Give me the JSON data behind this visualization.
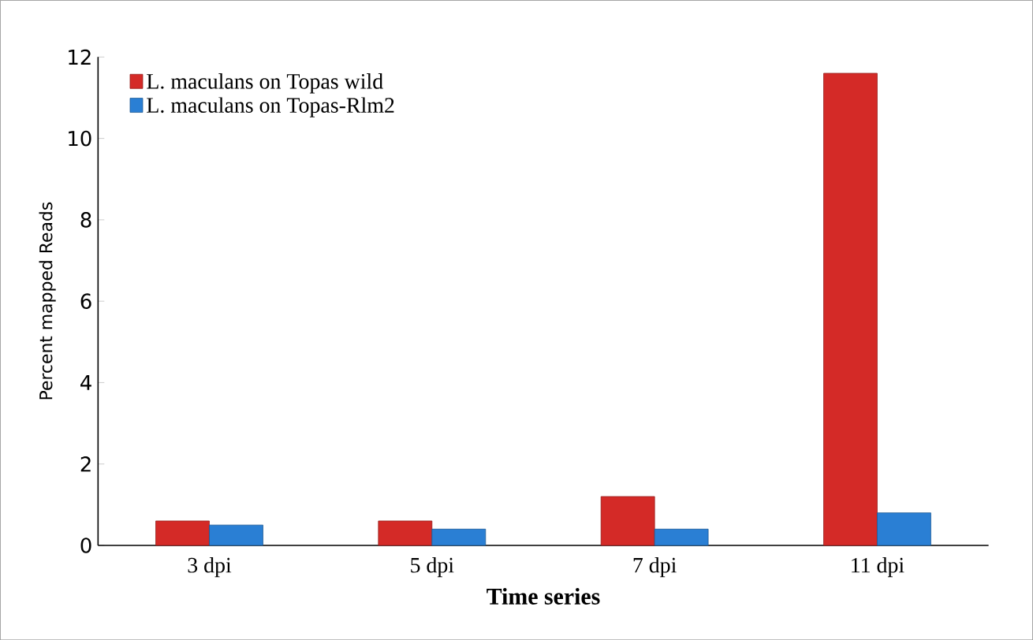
{
  "chart_data": {
    "type": "bar",
    "xlabel": "Time series",
    "ylabel": "Percent mapped Reads",
    "categories": [
      "3 dpi",
      "5 dpi",
      "7 dpi",
      "11 dpi"
    ],
    "series": [
      {
        "name": "L. maculans on Topas wild",
        "color": "#d42a27",
        "values": [
          0.6,
          0.6,
          1.2,
          11.6
        ]
      },
      {
        "name": "L. maculans on Topas-Rlm2",
        "color": "#2a7fd4",
        "values": [
          0.5,
          0.4,
          0.4,
          0.8
        ]
      }
    ],
    "ylim": [
      0,
      12
    ],
    "yticks": [
      0,
      2,
      4,
      6,
      8,
      10,
      12
    ],
    "grid": false,
    "legend": "top left"
  }
}
